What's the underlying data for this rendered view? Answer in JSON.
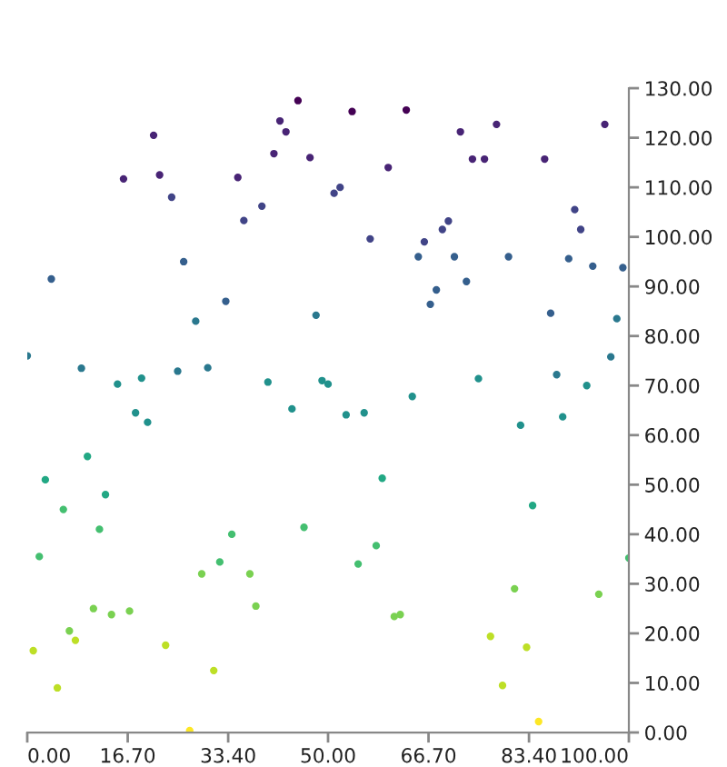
{
  "chart_data": {
    "type": "scatter",
    "x": [
      0,
      1,
      2,
      3,
      4,
      5,
      6,
      7,
      8,
      9,
      10,
      11,
      12,
      13,
      14,
      15,
      16,
      17,
      18,
      19,
      20,
      21,
      22,
      23,
      24,
      25,
      26,
      27,
      28,
      29,
      30,
      31,
      32,
      33,
      34,
      35,
      36,
      37,
      38,
      39,
      40,
      41,
      42,
      43,
      44,
      45,
      46,
      47,
      48,
      49,
      50,
      51,
      52,
      53,
      54,
      55,
      56,
      57,
      58,
      59,
      60,
      61,
      62,
      63,
      64,
      65,
      66,
      67,
      68,
      69,
      70,
      71,
      72,
      73,
      74,
      75,
      76,
      77,
      78,
      79,
      80,
      81,
      82,
      83,
      84,
      85,
      86,
      87,
      88,
      89,
      90,
      91,
      92,
      93,
      94,
      95,
      96,
      97,
      98,
      99,
      100
    ],
    "values": [
      76,
      16.5,
      35.5,
      51,
      91.5,
      9,
      45,
      20.5,
      18.6,
      73.5,
      55.7,
      25,
      41,
      48,
      23.8,
      70.3,
      111.7,
      24.5,
      64.5,
      71.5,
      62.6,
      120.5,
      112.5,
      17.6,
      108,
      72.9,
      95,
      0.4,
      83,
      32,
      73.6,
      12.5,
      34.4,
      87,
      40,
      112,
      103.3,
      32,
      25.5,
      106.2,
      70.7,
      116.8,
      123.4,
      121.2,
      65.3,
      127.5,
      41.4,
      116,
      84.2,
      71,
      70.3,
      108.8,
      110,
      64.1,
      125.3,
      34,
      64.5,
      99.6,
      37.7,
      51.3,
      114,
      23.4,
      23.8,
      125.6,
      67.8,
      96,
      99,
      86.4,
      89.3,
      101.5,
      103.2,
      96,
      121.2,
      91,
      115.7,
      71.4,
      115.7,
      19.4,
      122.7,
      9.5,
      96,
      29,
      62,
      17.2,
      45.8,
      2.2,
      115.7,
      84.6,
      72.2,
      63.7,
      95.6,
      105.5,
      101.5,
      70,
      94.1,
      27.9,
      122.7,
      75.8,
      83.5,
      93.8,
      35.2
    ],
    "colors": [
      "#2a788e",
      "#bddf26",
      "#44bf70",
      "#22a884",
      "#355f8d",
      "#bddf26",
      "#44bf70",
      "#7ad151",
      "#bddf26",
      "#2a788e",
      "#22a884",
      "#7ad151",
      "#44bf70",
      "#22a884",
      "#7ad151",
      "#21918c",
      "#482475",
      "#7ad151",
      "#21918c",
      "#21918c",
      "#21918c",
      "#482475",
      "#482475",
      "#bddf26",
      "#414487",
      "#2a788e",
      "#355f8d",
      "#fde725",
      "#2a788e",
      "#7ad151",
      "#2a788e",
      "#bddf26",
      "#44bf70",
      "#355f8d",
      "#44bf70",
      "#482475",
      "#414487",
      "#7ad151",
      "#7ad151",
      "#414487",
      "#21918c",
      "#482475",
      "#482475",
      "#482475",
      "#21918c",
      "#440154",
      "#44bf70",
      "#482475",
      "#2a788e",
      "#21918c",
      "#21918c",
      "#414487",
      "#414487",
      "#21918c",
      "#440154",
      "#44bf70",
      "#21918c",
      "#414487",
      "#44bf70",
      "#22a884",
      "#482475",
      "#7ad151",
      "#7ad151",
      "#440154",
      "#21918c",
      "#355f8d",
      "#414487",
      "#355f8d",
      "#355f8d",
      "#414487",
      "#414487",
      "#355f8d",
      "#482475",
      "#355f8d",
      "#482475",
      "#21918c",
      "#482475",
      "#bddf26",
      "#482475",
      "#bddf26",
      "#355f8d",
      "#7ad151",
      "#21918c",
      "#bddf26",
      "#22a884",
      "#fde725",
      "#482475",
      "#355f8d",
      "#2a788e",
      "#21918c",
      "#355f8d",
      "#414487",
      "#414487",
      "#21918c",
      "#355f8d",
      "#7ad151",
      "#482475",
      "#2a788e",
      "#2a788e",
      "#355f8d",
      "#44bf70"
    ],
    "marker": "circle",
    "xlim": [
      0,
      100
    ],
    "ylim": [
      0,
      130
    ],
    "xticks": [
      {
        "value": 0,
        "label": "0.00"
      },
      {
        "value": 16.7,
        "label": "16.70"
      },
      {
        "value": 33.4,
        "label": "33.40"
      },
      {
        "value": 50,
        "label": "50.00"
      },
      {
        "value": 66.7,
        "label": "66.70"
      },
      {
        "value": 83.4,
        "label": "83.40"
      },
      {
        "value": 100,
        "label": "100.00"
      }
    ],
    "yticks": [
      {
        "value": 0,
        "label": "0.00"
      },
      {
        "value": 10,
        "label": "10.00"
      },
      {
        "value": 20,
        "label": "20.00"
      },
      {
        "value": 30,
        "label": "30.00"
      },
      {
        "value": 40,
        "label": "40.00"
      },
      {
        "value": 50,
        "label": "50.00"
      },
      {
        "value": 60,
        "label": "60.00"
      },
      {
        "value": 70,
        "label": "70.00"
      },
      {
        "value": 80,
        "label": "80.00"
      },
      {
        "value": 90,
        "label": "90.00"
      },
      {
        "value": 100,
        "label": "100.00"
      },
      {
        "value": 110,
        "label": "110.00"
      },
      {
        "value": 120,
        "label": "120.00"
      },
      {
        "value": 130,
        "label": "130.00"
      }
    ]
  }
}
